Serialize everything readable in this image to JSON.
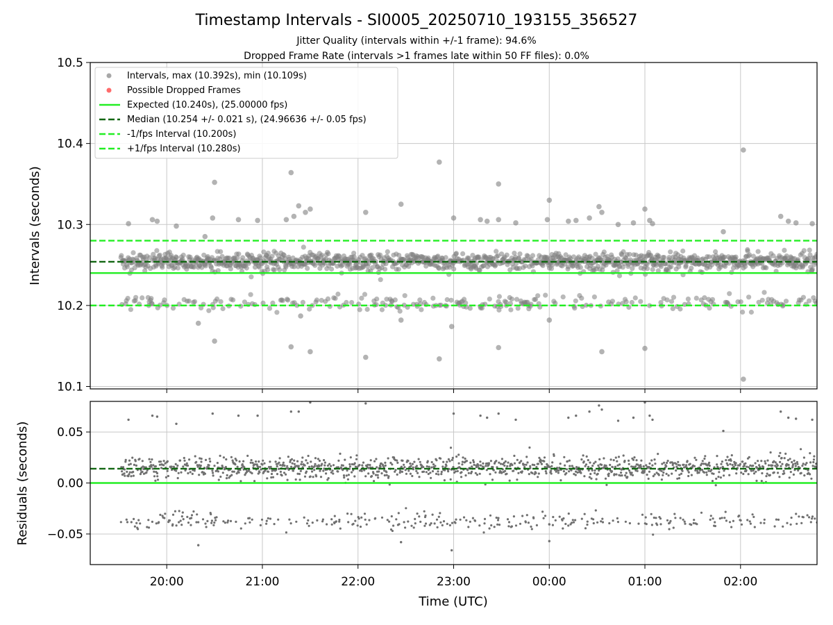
{
  "figure": {
    "title": "Timestamp Intervals - SI0005_20250710_193155_356527",
    "subtitle_1": "Jitter Quality (intervals within +/-1 frame): 94.6%",
    "subtitle_2": "Dropped Frame Rate (intervals >1 frames late within 50 FF files): 0.0%",
    "colors": {
      "points": "#808080",
      "dropped": "#ff5555",
      "expected": "#22ee22",
      "median": "#116611",
      "fps_bounds": "#22ee22",
      "grid": "#c8c8c8"
    }
  },
  "chart_data": [
    {
      "type": "scatter",
      "name": "intervals",
      "ylabel": "Intervals (seconds)",
      "xlabel": "",
      "ylim": [
        10.097,
        10.5
      ],
      "yticks": [
        10.1,
        10.2,
        10.3,
        10.4,
        10.5
      ],
      "ytick_labels": [
        "10.1",
        "10.2",
        "10.3",
        "10.4",
        "10.5"
      ],
      "xlim_hours": [
        19.2,
        26.8
      ],
      "xticks_hours": [
        20,
        21,
        22,
        23,
        24,
        25,
        26
      ],
      "grid": true,
      "legend_position": "top-left",
      "legend": [
        {
          "label": "Intervals, max (10.392s), min (10.109s)",
          "kind": "marker",
          "color": "#a8a8a8"
        },
        {
          "label": "Possible Dropped Frames",
          "kind": "marker",
          "color": "#ff6b6b"
        },
        {
          "label": "Expected (10.240s), (25.00000 fps)",
          "kind": "solid",
          "color": "#22ee22"
        },
        {
          "label": "Median (10.254 +/- 0.021 s), (24.96636 +/- 0.05 fps)",
          "kind": "dashed",
          "color": "#116611"
        },
        {
          "label": "-1/fps Interval (10.200s)",
          "kind": "dashed",
          "color": "#22ee22"
        },
        {
          "label": "+1/fps Interval (10.280s)",
          "kind": "dashed",
          "color": "#22ee22"
        }
      ],
      "reference_lines": {
        "expected": 10.24,
        "median": 10.254,
        "minus_fps": 10.2,
        "plus_fps": 10.28
      },
      "points_summary": {
        "x_start_hours": 19.52,
        "x_end_hours": 26.8,
        "bands": [
          10.254,
          10.203
        ]
      },
      "outliers": [
        {
          "x": 19.6,
          "y": 10.301
        },
        {
          "x": 19.85,
          "y": 10.306
        },
        {
          "x": 19.9,
          "y": 10.304
        },
        {
          "x": 20.1,
          "y": 10.298
        },
        {
          "x": 20.4,
          "y": 10.285
        },
        {
          "x": 20.48,
          "y": 10.308
        },
        {
          "x": 20.5,
          "y": 10.352
        },
        {
          "x": 20.5,
          "y": 10.156
        },
        {
          "x": 20.33,
          "y": 10.178
        },
        {
          "x": 20.75,
          "y": 10.306
        },
        {
          "x": 20.95,
          "y": 10.305
        },
        {
          "x": 21.25,
          "y": 10.306
        },
        {
          "x": 21.3,
          "y": 10.364
        },
        {
          "x": 21.33,
          "y": 10.31
        },
        {
          "x": 21.38,
          "y": 10.323
        },
        {
          "x": 21.45,
          "y": 10.315
        },
        {
          "x": 21.5,
          "y": 10.319
        },
        {
          "x": 21.3,
          "y": 10.149
        },
        {
          "x": 21.5,
          "y": 10.143
        },
        {
          "x": 21.4,
          "y": 10.187
        },
        {
          "x": 22.08,
          "y": 10.315
        },
        {
          "x": 22.08,
          "y": 10.136
        },
        {
          "x": 22.45,
          "y": 10.325
        },
        {
          "x": 22.45,
          "y": 10.182
        },
        {
          "x": 22.85,
          "y": 10.377
        },
        {
          "x": 22.85,
          "y": 10.134
        },
        {
          "x": 23.0,
          "y": 10.308
        },
        {
          "x": 22.98,
          "y": 10.174
        },
        {
          "x": 23.28,
          "y": 10.306
        },
        {
          "x": 23.35,
          "y": 10.304
        },
        {
          "x": 23.47,
          "y": 10.35
        },
        {
          "x": 23.47,
          "y": 10.306
        },
        {
          "x": 23.47,
          "y": 10.148
        },
        {
          "x": 23.65,
          "y": 10.302
        },
        {
          "x": 23.98,
          "y": 10.306
        },
        {
          "x": 24.0,
          "y": 10.33
        },
        {
          "x": 24.0,
          "y": 10.182
        },
        {
          "x": 24.2,
          "y": 10.304
        },
        {
          "x": 24.28,
          "y": 10.305
        },
        {
          "x": 24.42,
          "y": 10.308
        },
        {
          "x": 24.52,
          "y": 10.322
        },
        {
          "x": 24.55,
          "y": 10.315
        },
        {
          "x": 24.55,
          "y": 10.143
        },
        {
          "x": 24.72,
          "y": 10.3
        },
        {
          "x": 24.88,
          "y": 10.302
        },
        {
          "x": 25.0,
          "y": 10.319
        },
        {
          "x": 25.05,
          "y": 10.305
        },
        {
          "x": 25.08,
          "y": 10.301
        },
        {
          "x": 25.0,
          "y": 10.147
        },
        {
          "x": 25.82,
          "y": 10.291
        },
        {
          "x": 26.03,
          "y": 10.392
        },
        {
          "x": 26.03,
          "y": 10.109
        },
        {
          "x": 26.42,
          "y": 10.31
        },
        {
          "x": 26.5,
          "y": 10.304
        },
        {
          "x": 26.58,
          "y": 10.302
        },
        {
          "x": 26.75,
          "y": 10.301
        }
      ]
    },
    {
      "type": "scatter",
      "name": "residuals",
      "ylabel": "Residuals (seconds)",
      "xlabel": "Time (UTC)",
      "ylim": [
        -0.08,
        0.08
      ],
      "yticks": [
        -0.05,
        0.0,
        0.05
      ],
      "ytick_labels": [
        "−0.05",
        "0.00",
        "0.05"
      ],
      "xlim_hours": [
        19.2,
        26.8
      ],
      "xticks_hours": [
        20,
        21,
        22,
        23,
        24,
        25,
        26
      ],
      "xtick_labels": [
        "20:00",
        "21:00",
        "22:00",
        "23:00",
        "00:00",
        "01:00",
        "02:00"
      ],
      "grid": true,
      "reference_lines": {
        "zero": 0.0,
        "median": 0.014
      },
      "points_summary": {
        "x_start_hours": 19.52,
        "x_end_hours": 26.8,
        "bands": [
          0.015,
          -0.037
        ]
      },
      "outliers": [
        {
          "x": 19.6,
          "y": 0.062
        },
        {
          "x": 19.85,
          "y": 0.066
        },
        {
          "x": 19.9,
          "y": 0.065
        },
        {
          "x": 20.1,
          "y": 0.058
        },
        {
          "x": 20.48,
          "y": 0.068
        },
        {
          "x": 20.75,
          "y": 0.066
        },
        {
          "x": 20.95,
          "y": 0.066
        },
        {
          "x": 21.3,
          "y": 0.07
        },
        {
          "x": 21.38,
          "y": 0.07
        },
        {
          "x": 21.5,
          "y": 0.079
        },
        {
          "x": 22.08,
          "y": 0.078
        },
        {
          "x": 20.33,
          "y": -0.061
        },
        {
          "x": 22.45,
          "y": -0.058
        },
        {
          "x": 22.98,
          "y": -0.066
        },
        {
          "x": 23.0,
          "y": 0.068
        },
        {
          "x": 23.28,
          "y": 0.066
        },
        {
          "x": 23.35,
          "y": 0.064
        },
        {
          "x": 23.47,
          "y": 0.068
        },
        {
          "x": 23.65,
          "y": 0.062
        },
        {
          "x": 24.0,
          "y": -0.057
        },
        {
          "x": 24.2,
          "y": 0.064
        },
        {
          "x": 24.28,
          "y": 0.066
        },
        {
          "x": 24.42,
          "y": 0.07
        },
        {
          "x": 24.52,
          "y": 0.076
        },
        {
          "x": 24.55,
          "y": 0.072
        },
        {
          "x": 24.72,
          "y": 0.061
        },
        {
          "x": 24.88,
          "y": 0.064
        },
        {
          "x": 25.0,
          "y": 0.079
        },
        {
          "x": 25.05,
          "y": 0.066
        },
        {
          "x": 25.08,
          "y": 0.062
        },
        {
          "x": 25.82,
          "y": 0.051
        },
        {
          "x": 26.42,
          "y": 0.07
        },
        {
          "x": 26.5,
          "y": 0.064
        },
        {
          "x": 26.58,
          "y": 0.063
        },
        {
          "x": 26.75,
          "y": 0.062
        }
      ]
    }
  ]
}
